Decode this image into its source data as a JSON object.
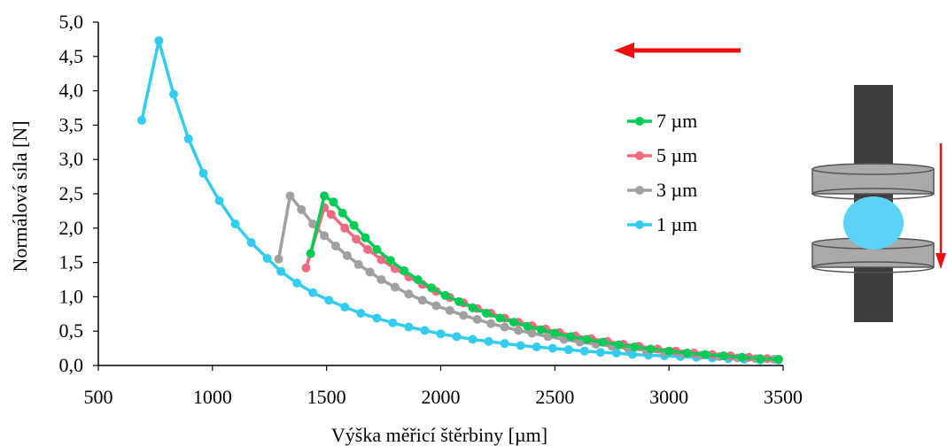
{
  "chart_data": {
    "type": "line",
    "xlabel": "Výška měřicí štěrbiny [µm]",
    "ylabel": "Normálová síla [N]",
    "xlim": [
      500,
      3500
    ],
    "ylim": [
      0,
      5
    ],
    "x_ticks": [
      500,
      1000,
      1500,
      2000,
      2500,
      3000,
      3500
    ],
    "x_tick_labels": [
      "500",
      "1000",
      "1500",
      "2000",
      "2500",
      "3000",
      "3500"
    ],
    "y_ticks": [
      0,
      0.5,
      1,
      1.5,
      2,
      2.5,
      3,
      3.5,
      4,
      4.5,
      5
    ],
    "y_tick_labels": [
      "0,0",
      "0,5",
      "1,0",
      "1,5",
      "2,0",
      "2,5",
      "3,0",
      "3,5",
      "4,0",
      "4,5",
      "5,0"
    ],
    "grid": false,
    "legend_position": "right",
    "series": [
      {
        "name": "7 µm",
        "color": "#00cc55",
        "x": [
          1430,
          1490,
          1530,
          1570,
          1620,
          1670,
          1720,
          1780,
          1840,
          1900,
          1960,
          2020,
          2080,
          2140,
          2200,
          2260,
          2320,
          2380,
          2440,
          2500,
          2570,
          2640,
          2710,
          2780,
          2850,
          2920,
          3000,
          3080,
          3160,
          3240,
          3320,
          3400,
          3480
        ],
        "y": [
          1.63,
          2.47,
          2.38,
          2.22,
          2.04,
          1.86,
          1.69,
          1.53,
          1.38,
          1.25,
          1.13,
          1.02,
          0.93,
          0.84,
          0.76,
          0.69,
          0.63,
          0.57,
          0.52,
          0.47,
          0.42,
          0.38,
          0.34,
          0.3,
          0.27,
          0.24,
          0.21,
          0.18,
          0.16,
          0.14,
          0.12,
          0.1,
          0.09
        ]
      },
      {
        "name": "5 µm",
        "color": "#f06a80",
        "x": [
          1410,
          1490,
          1520,
          1580,
          1630,
          1680,
          1740,
          1800,
          1860,
          1920,
          1980,
          2040,
          2100,
          2160,
          2220,
          2280,
          2340,
          2400,
          2460,
          2520,
          2590,
          2660,
          2730,
          2800,
          2870,
          2950,
          3030,
          3110,
          3190,
          3270,
          3350,
          3430,
          3480
        ],
        "y": [
          1.42,
          2.3,
          2.2,
          2.0,
          1.84,
          1.69,
          1.54,
          1.41,
          1.29,
          1.18,
          1.08,
          0.99,
          0.91,
          0.83,
          0.76,
          0.69,
          0.63,
          0.58,
          0.53,
          0.48,
          0.43,
          0.39,
          0.35,
          0.31,
          0.28,
          0.24,
          0.21,
          0.18,
          0.16,
          0.14,
          0.12,
          0.1,
          0.09
        ]
      },
      {
        "name": "3 µm",
        "color": "#a0a0a0",
        "x": [
          1290,
          1340,
          1390,
          1440,
          1490,
          1540,
          1590,
          1640,
          1690,
          1740,
          1800,
          1860,
          1920,
          1980,
          2040,
          2100,
          2160,
          2220,
          2280,
          2340,
          2400,
          2470,
          2540,
          2610,
          2680,
          2750,
          2820,
          2900,
          2980,
          3060,
          3140,
          3220,
          3300,
          3380,
          3460
        ],
        "y": [
          1.55,
          2.47,
          2.27,
          2.06,
          1.89,
          1.74,
          1.6,
          1.47,
          1.36,
          1.25,
          1.14,
          1.04,
          0.95,
          0.87,
          0.8,
          0.73,
          0.67,
          0.61,
          0.56,
          0.51,
          0.47,
          0.42,
          0.38,
          0.34,
          0.31,
          0.28,
          0.25,
          0.22,
          0.19,
          0.17,
          0.15,
          0.13,
          0.11,
          0.1,
          0.09
        ]
      },
      {
        "name": "1 µm",
        "color": "#33ccee",
        "x": [
          690,
          765,
          830,
          895,
          960,
          1030,
          1100,
          1170,
          1240,
          1300,
          1370,
          1440,
          1510,
          1580,
          1650,
          1720,
          1790,
          1860,
          1930,
          2000,
          2070,
          2140,
          2210,
          2280,
          2350,
          2420,
          2490,
          2560,
          2630,
          2700,
          2770,
          2840,
          2910,
          2980,
          3050,
          3120,
          3190,
          3260,
          3330,
          3400,
          3480
        ],
        "y": [
          3.57,
          4.73,
          3.95,
          3.3,
          2.8,
          2.4,
          2.06,
          1.79,
          1.56,
          1.37,
          1.2,
          1.06,
          0.95,
          0.85,
          0.76,
          0.69,
          0.62,
          0.56,
          0.51,
          0.46,
          0.42,
          0.38,
          0.35,
          0.32,
          0.29,
          0.27,
          0.25,
          0.23,
          0.21,
          0.19,
          0.18,
          0.16,
          0.15,
          0.14,
          0.13,
          0.12,
          0.11,
          0.1,
          0.09,
          0.08,
          0.08
        ]
      }
    ]
  },
  "decorations": {
    "direction_arrow_color": "#ee1111",
    "rod_color": "#3d3d3d",
    "plate_color": "#a9a9a9",
    "sample_color": "#5cd3f6"
  }
}
